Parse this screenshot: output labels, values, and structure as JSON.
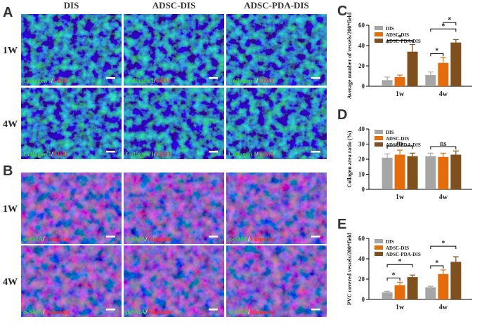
{
  "figure": {
    "panels": [
      {
        "letter": "A",
        "columns": [
          "DIS",
          "ADSC-DIS",
          "ADSC-PDA-DIS"
        ],
        "rows": [
          "1W",
          "4W"
        ],
        "stain": [
          "Collagen I",
          "/",
          "CD31"
        ]
      },
      {
        "letter": "B",
        "rows": [
          "1W",
          "4W"
        ],
        "stain": [
          "α-SMA",
          "/",
          "Vimentin"
        ]
      }
    ]
  },
  "chart_data": [
    {
      "type": "bar",
      "letter": "C",
      "y_label": "Average number of vessels/200*field",
      "categories": [
        "1w",
        "4w"
      ],
      "series": [
        {
          "name": "DIS",
          "color": "#a6a6a6",
          "values": [
            6,
            11
          ],
          "errors": [
            3,
            3
          ]
        },
        {
          "name": "ADSC-DIS",
          "color": "#e46c0a",
          "values": [
            9,
            23
          ],
          "errors": [
            2,
            5
          ]
        },
        {
          "name": "ADSC-PDA-DIS",
          "color": "#7f4f1e",
          "values": [
            34,
            43
          ],
          "errors": [
            7,
            3
          ]
        }
      ],
      "ylim": [
        0,
        60
      ],
      "yticks": [
        0,
        20,
        40,
        60
      ],
      "significance": [
        {
          "category": "1w",
          "between": [
            "DIS",
            "ADSC-PDA-DIS"
          ],
          "label": "*"
        },
        {
          "category": "4w",
          "between": [
            "DIS",
            "ADSC-DIS"
          ],
          "label": "*"
        },
        {
          "category": "4w",
          "between": [
            "DIS",
            "ADSC-PDA-DIS"
          ],
          "label": "*"
        },
        {
          "category": "4w",
          "between": [
            "ADSC-DIS",
            "ADSC-PDA-DIS"
          ],
          "label": "*"
        }
      ]
    },
    {
      "type": "bar",
      "letter": "D",
      "y_label": "Collagen area ratio (%)",
      "categories": [
        "1w",
        "4w"
      ],
      "series": [
        {
          "name": "DIS",
          "color": "#a6a6a6",
          "values": [
            21,
            22
          ],
          "errors": [
            2.5,
            2
          ]
        },
        {
          "name": "ADSC-DIS",
          "color": "#e46c0a",
          "values": [
            23,
            21.5
          ],
          "errors": [
            3,
            2.5
          ]
        },
        {
          "name": "ADSC-PDA-DIS",
          "color": "#7f4f1e",
          "values": [
            22,
            23
          ],
          "errors": [
            2,
            2.5
          ]
        }
      ],
      "ylim": [
        0,
        40
      ],
      "yticks": [
        0,
        10,
        20,
        30,
        40
      ],
      "significance": [
        {
          "category": "1w",
          "between": [
            "DIS",
            "ADSC-PDA-DIS"
          ],
          "label": "ns"
        },
        {
          "category": "4w",
          "between": [
            "DIS",
            "ADSC-PDA-DIS"
          ],
          "label": "ns"
        }
      ]
    },
    {
      "type": "bar",
      "letter": "E",
      "y_label": "PVC covered vessels/200*field",
      "categories": [
        "1w",
        "4w"
      ],
      "series": [
        {
          "name": "DIS",
          "color": "#a6a6a6",
          "values": [
            7,
            12
          ],
          "errors": [
            1,
            1
          ]
        },
        {
          "name": "ADSC-DIS",
          "color": "#e46c0a",
          "values": [
            14,
            25
          ],
          "errors": [
            3,
            4
          ]
        },
        {
          "name": "ADSC-PDA-DIS",
          "color": "#7f4f1e",
          "values": [
            22,
            37
          ],
          "errors": [
            2,
            5
          ]
        }
      ],
      "ylim": [
        0,
        60
      ],
      "yticks": [
        0,
        20,
        40,
        60
      ],
      "significance": [
        {
          "category": "1w",
          "between": [
            "DIS",
            "ADSC-DIS"
          ],
          "label": "*"
        },
        {
          "category": "1w",
          "between": [
            "DIS",
            "ADSC-PDA-DIS"
          ],
          "label": "*"
        },
        {
          "category": "4w",
          "between": [
            "DIS",
            "ADSC-DIS"
          ],
          "label": "*"
        },
        {
          "category": "4w",
          "between": [
            "DIS",
            "ADSC-PDA-DIS"
          ],
          "label": "*"
        }
      ]
    }
  ]
}
